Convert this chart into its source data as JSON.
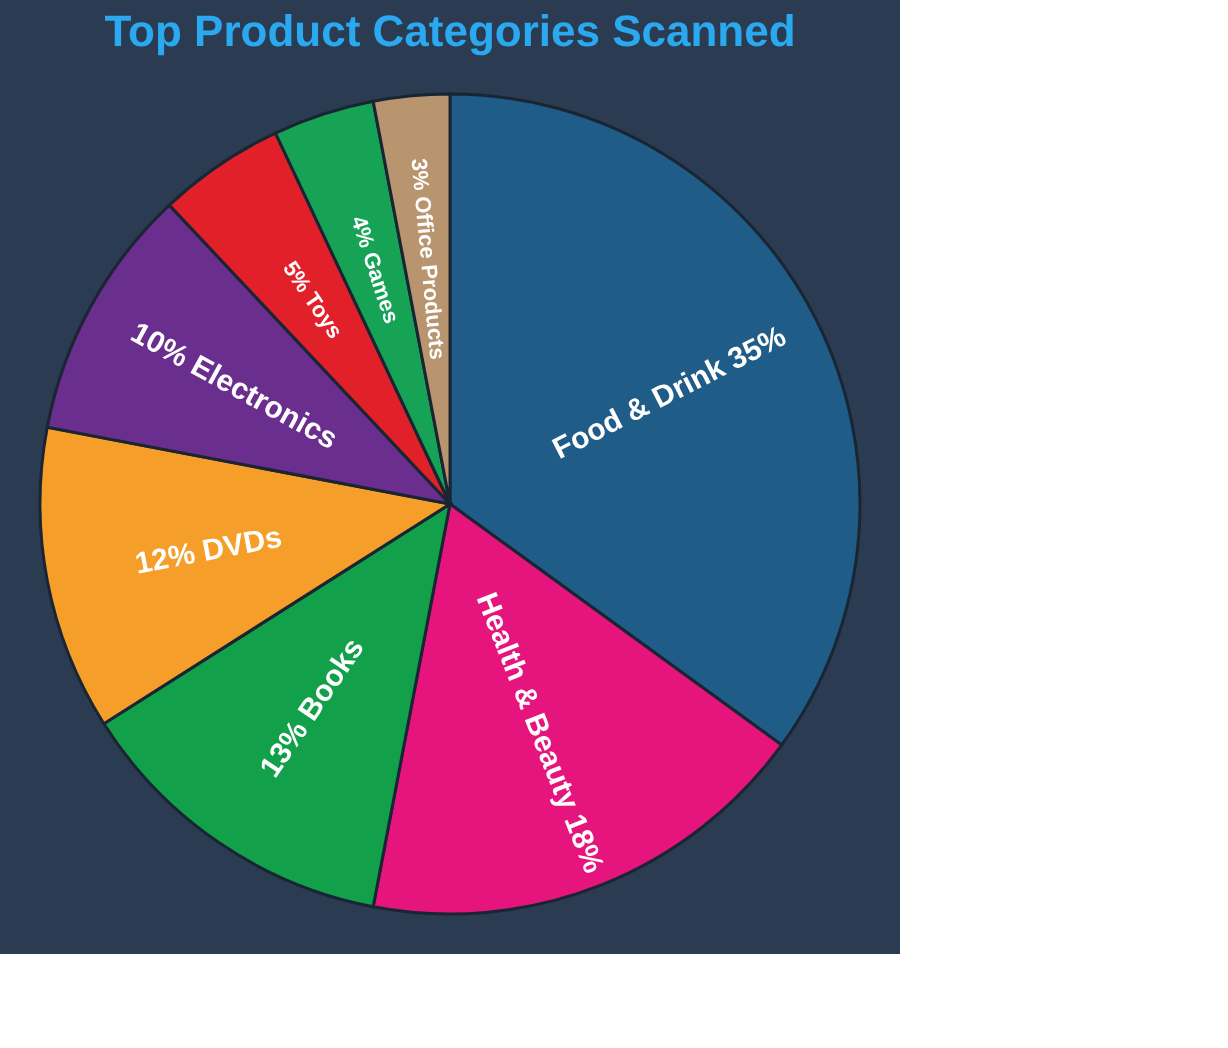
{
  "chart_data": {
    "type": "pie",
    "title": "Top Product Categories Scanned",
    "categories": [
      "Food & Drink",
      "Health & Beauty",
      "Books",
      "DVDs",
      "Electronics",
      "Toys",
      "Games",
      "Office Products"
    ],
    "values": [
      35,
      18,
      13,
      12,
      10,
      5,
      4,
      3
    ],
    "colors": [
      "#1f5c88",
      "#e6157e",
      "#12a04a",
      "#f59e2a",
      "#6a2f8e",
      "#e2202a",
      "#17a356",
      "#b8956e"
    ],
    "value_labels": [
      "35%",
      "18%",
      "13%",
      "12%",
      "10%",
      "5%",
      "4%",
      "3%"
    ],
    "legend": false
  }
}
